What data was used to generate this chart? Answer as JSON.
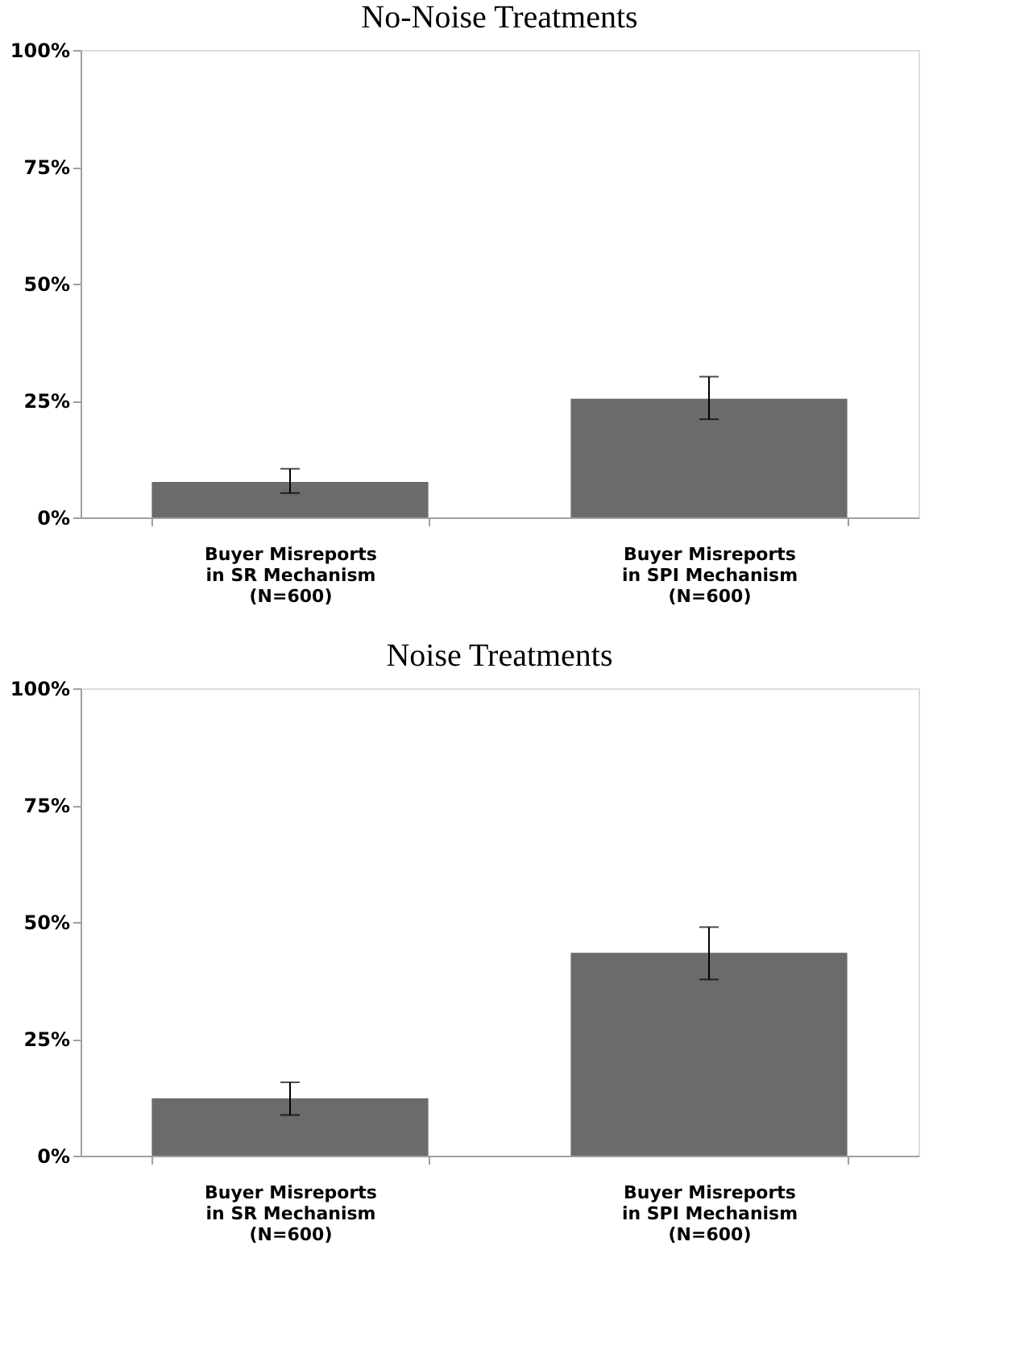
{
  "chart_data": [
    {
      "type": "bar",
      "title": "No-Noise Treatments",
      "categories": [
        "Buyer Misreports\nin SR Mechanism\n(N=600)",
        "Buyer Misreports\nin SPI Mechanism\n(N=600)"
      ],
      "values": [
        7.6,
        25.4
      ],
      "errors": [
        [
          5.2,
          10.4
        ],
        [
          21.0,
          30.1
        ]
      ],
      "color": "#6b6b6b",
      "ylim": [
        0,
        100
      ],
      "yticks": [
        {
          "value": 0,
          "label": "0%"
        },
        {
          "value": 25,
          "label": "25%"
        },
        {
          "value": 50,
          "label": "50%"
        },
        {
          "value": 75,
          "label": "75%"
        },
        {
          "value": 100,
          "label": "100%"
        }
      ],
      "grid": false
    },
    {
      "type": "bar",
      "title": "Noise Treatments",
      "categories": [
        "Buyer Misreports\nin SR Mechanism\n(N=600)",
        "Buyer Misreports\nin SPI Mechanism\n(N=600)"
      ],
      "values": [
        12.3,
        43.4
      ],
      "errors": [
        [
          8.7,
          15.7
        ],
        [
          37.7,
          48.9
        ]
      ],
      "color": "#6b6b6b",
      "ylim": [
        0,
        100
      ],
      "yticks": [
        {
          "value": 0,
          "label": "0%"
        },
        {
          "value": 25,
          "label": "25%"
        },
        {
          "value": 50,
          "label": "50%"
        },
        {
          "value": 75,
          "label": "75%"
        },
        {
          "value": 100,
          "label": "100%"
        }
      ],
      "grid": false
    }
  ]
}
